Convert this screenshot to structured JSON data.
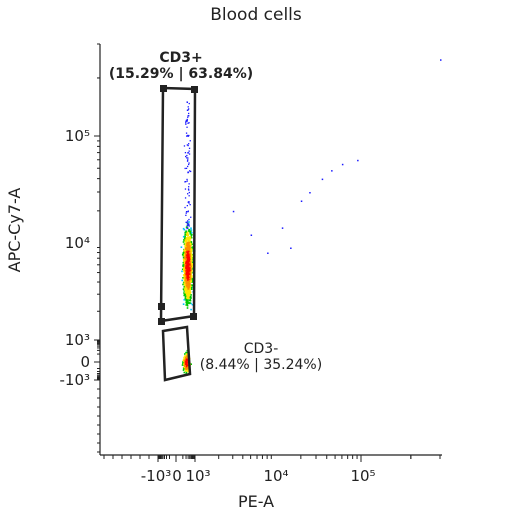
{
  "chart_data": {
    "type": "scatter",
    "title": "Blood cells",
    "xlabel": "PE-A",
    "ylabel": "APC-Cy7-A",
    "x_scale": "biexponential",
    "y_scale": "biexponential",
    "x_ticks": [
      {
        "label": "-10³",
        "value": -1000
      },
      {
        "label": "0",
        "value": 0
      },
      {
        "label": "10³",
        "value": 1000
      },
      {
        "label": "10⁴",
        "value": 10000
      },
      {
        "label": "10⁵",
        "value": 100000
      }
    ],
    "y_ticks": [
      {
        "label": "-10³",
        "value": -1000
      },
      {
        "label": "0",
        "value": 0
      },
      {
        "label": "10³",
        "value": 1000
      },
      {
        "label": "10⁴",
        "value": 10000
      },
      {
        "label": "10⁵",
        "value": 100000
      }
    ],
    "gates": [
      {
        "name": "CD3+",
        "stats": "(15.29% | 63.84%)",
        "x_range": [
          -400,
          1200
        ],
        "y_range": [
          1150,
          300000
        ]
      },
      {
        "name": "CD3-",
        "stats": "(8.44% | 35.24%)",
        "x_range": [
          -350,
          1000
        ],
        "y_range": [
          -1100,
          700
        ]
      }
    ],
    "populations": [
      {
        "name": "CD3+",
        "x_center": 250,
        "y_center": 6000
      },
      {
        "name": "CD3-",
        "x_center": 200,
        "y_center": 0
      }
    ],
    "density_colors": [
      "#1a1aff",
      "#00bfff",
      "#00c800",
      "#ffe600",
      "#ff8c00",
      "#ff0000"
    ],
    "gate_color": "#222222"
  }
}
